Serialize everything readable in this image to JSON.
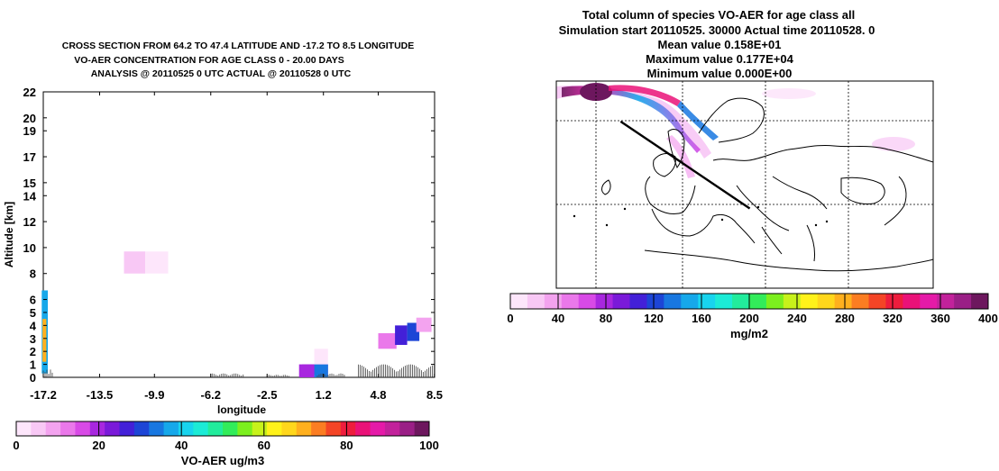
{
  "left_panel": {
    "title_lines": [
      "CROSS SECTION FROM  64.2 TO  47.4 LATITUDE  AND  -17.2 TO    8.5 LONGITUDE",
      "VO-AER  CONCENTRATION FOR AGE CLASS  0 -  20.00 DAYS",
      "ANALYSIS @ 20110525       0 UTC   ACTUAL @  20110528       0 UTC"
    ],
    "colorbar_unit_label": "VO-AER  ug/m3"
  },
  "right_panel": {
    "title_lines": [
      "Total column of species VO-AER  for age class all",
      "Simulation start 20110525. 30000   Actual time 20110528.       0",
      "Mean value  0.158E+01",
      "Maximum value  0.177E+04",
      "Minimum value  0.000E+00"
    ],
    "colorbar_unit_label": "mg/m2"
  },
  "colors": {
    "palette": [
      "#ffffff",
      "#fde6fb",
      "#f8c8f5",
      "#f3a3ef",
      "#ea78ea",
      "#d84ae6",
      "#a827df",
      "#7a1ad9",
      "#4320d8",
      "#1d45d6",
      "#1877e0",
      "#16a8ea",
      "#18d4ee",
      "#1cebd6",
      "#22ec9c",
      "#32ec5a",
      "#7cef1e",
      "#c7f21b",
      "#fff21a",
      "#ffd71c",
      "#ffb01e",
      "#fb7d22",
      "#f44526",
      "#ee1d3d",
      "#ea1278",
      "#e51aa8",
      "#c2229b",
      "#9a1f86",
      "#6d175e"
    ]
  },
  "chart_data": [
    {
      "type": "heatmap",
      "title": "VO-AER CONCENTRATION FOR AGE CLASS 0 - 20.00 DAYS",
      "xlabel": "longitude",
      "ylabel": "Altitude [km]",
      "xlim": [
        -17.2,
        8.5
      ],
      "ylim": [
        0,
        22
      ],
      "x_ticks": [
        "-17.2",
        "-13.5",
        "-9.9",
        "-6.2",
        "-2.5",
        "1.2",
        "4.8",
        "8.5"
      ],
      "x_tick_values": [
        -17.2,
        -13.5,
        -9.9,
        -6.2,
        -2.5,
        1.2,
        4.8,
        8.5
      ],
      "y_ticks": [
        "0",
        "1",
        "2",
        "3",
        "4",
        "5",
        "6",
        "8",
        "10",
        "12",
        "14",
        "15",
        "17",
        "19",
        "20",
        "22"
      ],
      "y_tick_values": [
        0,
        1,
        2,
        3,
        4,
        5,
        6,
        8,
        10,
        12,
        14,
        15,
        17,
        19,
        20,
        22
      ],
      "colorbar": {
        "label": "VO-AER  ug/m3",
        "ticks": [
          "0",
          "20",
          "40",
          "60",
          "80",
          "100"
        ],
        "tick_values": [
          0,
          20,
          40,
          60,
          80,
          100
        ],
        "range": [
          0,
          100
        ]
      },
      "cells": [
        {
          "lon": [
            -17.3,
            -16.9
          ],
          "alt": [
            0.3,
            6.7
          ],
          "value": 40
        },
        {
          "lon": [
            -17.25,
            -17.0
          ],
          "alt": [
            1.2,
            4.5
          ],
          "value": 70
        },
        {
          "lon": [
            -11.9,
            -10.5
          ],
          "alt": [
            8.0,
            9.7
          ],
          "value": 8
        },
        {
          "lon": [
            -10.5,
            -9.0
          ],
          "alt": [
            8.0,
            9.7
          ],
          "value": 4
        },
        {
          "lon": [
            -0.2,
            1.5
          ],
          "alt": [
            0.2,
            1.0
          ],
          "value": 22
        },
        {
          "lon": [
            -0.4,
            0.6
          ],
          "alt": [
            0.0,
            1.0
          ],
          "value": 20
        },
        {
          "lon": [
            0.6,
            1.5
          ],
          "alt": [
            0.0,
            1.0
          ],
          "value": 36
        },
        {
          "lon": [
            0.6,
            1.5
          ],
          "alt": [
            1.0,
            2.2
          ],
          "value": 4
        },
        {
          "lon": [
            4.8,
            6.0
          ],
          "alt": [
            2.2,
            3.4
          ],
          "value": 14
        },
        {
          "lon": [
            5.9,
            6.7
          ],
          "alt": [
            2.5,
            4.0
          ],
          "value": 28
        },
        {
          "lon": [
            6.7,
            7.5
          ],
          "alt": [
            2.8,
            4.2
          ],
          "value": 32
        },
        {
          "lon": [
            7.3,
            8.3
          ],
          "alt": [
            3.5,
            4.6
          ],
          "value": 12
        }
      ],
      "orography": [
        {
          "lon": [
            -17.2,
            -16.6
          ],
          "alt_max": 0.6
        },
        {
          "lon": [
            -6.2,
            -4.0
          ],
          "alt_max": 0.3
        },
        {
          "lon": [
            -2.5,
            -1.0
          ],
          "alt_max": 0.2
        },
        {
          "lon": [
            0.8,
            2.6
          ],
          "alt_max": 0.3
        },
        {
          "lon": [
            3.5,
            8.5
          ],
          "alt_max": 1.0
        }
      ]
    },
    {
      "type": "heatmap",
      "title": "Total column of species VO-AER for age class all",
      "xlabel": "",
      "ylabel": "",
      "map_region": "Europe and North Atlantic",
      "colorbar": {
        "label": "mg/m2",
        "ticks": [
          "0",
          "40",
          "80",
          "120",
          "160",
          "200",
          "240",
          "280",
          "320",
          "360",
          "400"
        ],
        "tick_values": [
          0,
          40,
          80,
          120,
          160,
          200,
          240,
          280,
          320,
          360,
          400
        ],
        "range": [
          0,
          400
        ]
      },
      "cross_section_line": {
        "from": {
          "lat": 64.2,
          "lon": -17.2
        },
        "to": {
          "lat": 47.4,
          "lon": 8.5
        }
      },
      "plume": {
        "max_value": 1770,
        "mean_value": 1.58,
        "min_value": 0.0
      }
    }
  ]
}
